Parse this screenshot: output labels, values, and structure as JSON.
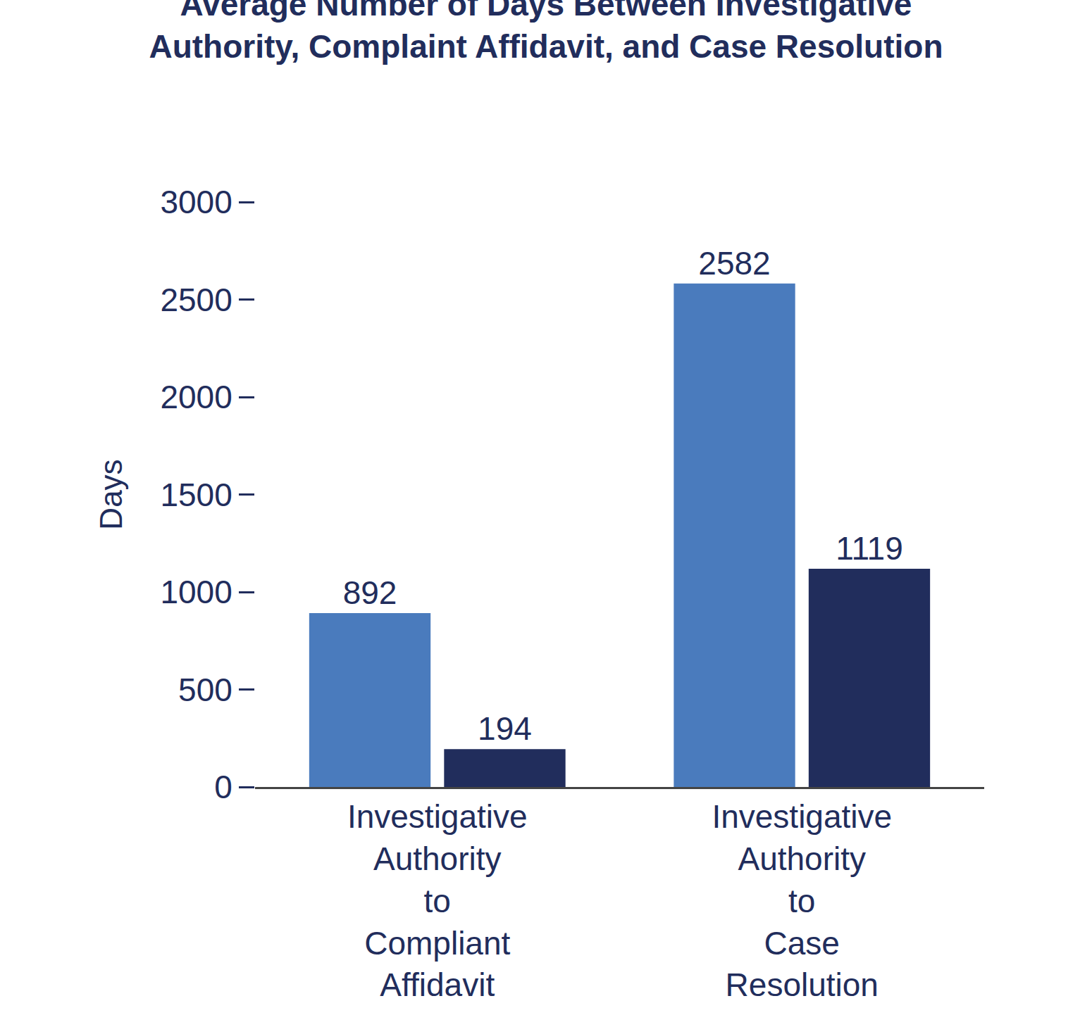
{
  "chart_data": {
    "type": "bar",
    "title": "Average Number of Days Between Investigative\nAuthority, Complaint Affidavit, and Case Resolution",
    "y_label": "Days",
    "categories": [
      "Investigative Authority to Compliant Affidavit",
      "Investigative Authority to Case Resolution"
    ],
    "series": [
      {
        "color": "#4a7bbd",
        "values": [
          892,
          2582
        ]
      },
      {
        "color": "#212d5c",
        "values": [
          194,
          1119
        ]
      }
    ],
    "ylim": [
      0,
      3000
    ],
    "yticks": [
      0,
      500,
      1000,
      1500,
      2000,
      2500,
      3000
    ],
    "grid": false,
    "data_labels": true
  }
}
